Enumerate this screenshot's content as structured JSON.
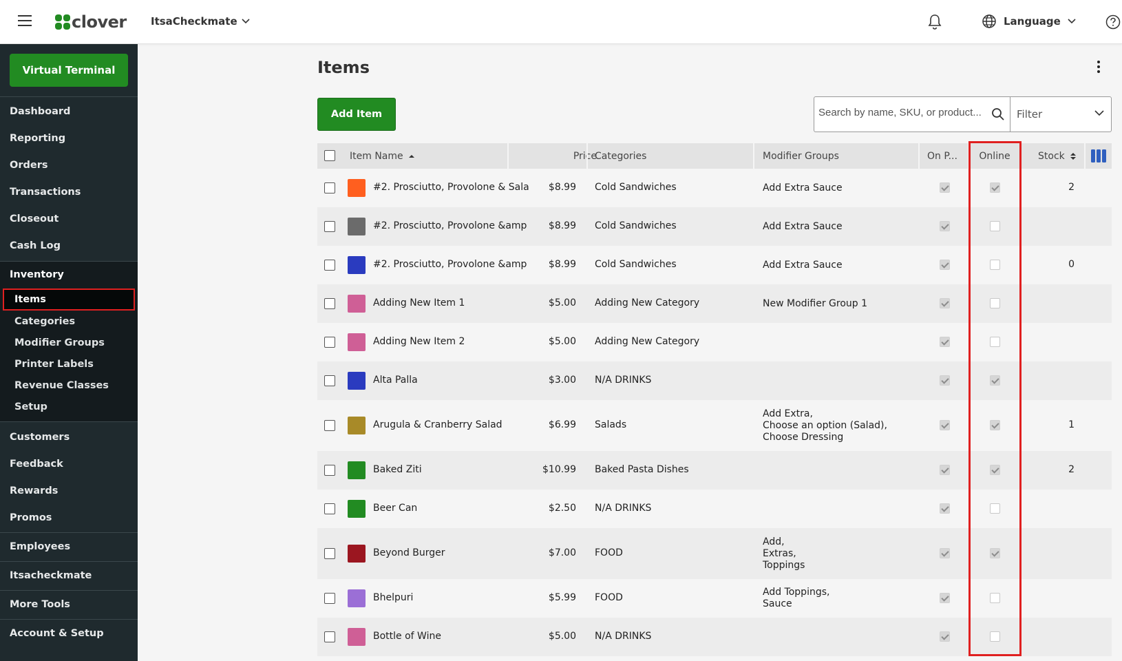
{
  "header": {
    "logo_text": "clover",
    "merchant_name": "ItsaCheckmate",
    "language_label": "Language",
    "icons": [
      "menu-icon",
      "clover-logo",
      "chevron-down-icon",
      "bell-icon",
      "globe-icon",
      "help-icon"
    ]
  },
  "sidebar": {
    "virtual_terminal_label": "Virtual Terminal",
    "items": {
      "dashboard": "Dashboard",
      "reporting": "Reporting",
      "orders": "Orders",
      "transactions": "Transactions",
      "closeout": "Closeout",
      "cash_log": "Cash Log",
      "inventory": "Inventory",
      "items": "Items",
      "categories": "Categories",
      "modifier_groups": "Modifier Groups",
      "printer_labels": "Printer Labels",
      "revenue_classes": "Revenue Classes",
      "setup": "Setup",
      "customers": "Customers",
      "feedback": "Feedback",
      "rewards": "Rewards",
      "promos": "Promos",
      "employees": "Employees",
      "itsacheckmate": "Itsacheckmate",
      "more_tools": "More Tools",
      "account_setup": "Account & Setup"
    }
  },
  "main": {
    "title": "Items",
    "add_item_label": "Add Item",
    "search_placeholder": "Search by name, SKU, or product...",
    "filter_label": "Filter"
  },
  "table": {
    "columns": {
      "item_name": "Item Name",
      "price": "Price",
      "categories": "Categories",
      "modifier_groups": "Modifier Groups",
      "on_pos": "On P...",
      "online": "Online",
      "stock": "Stock"
    },
    "rows": [
      {
        "name": "#2. Prosciutto, Provolone & Sala",
        "color": "#ff5f1f",
        "price": "$8.99",
        "category": "Cold Sandwiches",
        "modifiers": [
          "Add Extra Sauce"
        ],
        "on_pos": true,
        "online": true,
        "stock": "2"
      },
      {
        "name": "#2. Prosciutto, Provolone &amp",
        "color": "#6b6b6b",
        "price": "$8.99",
        "category": "Cold Sandwiches",
        "modifiers": [
          "Add Extra Sauce"
        ],
        "on_pos": true,
        "online": false,
        "stock": ""
      },
      {
        "name": "#2. Prosciutto, Provolone &amp",
        "color": "#2a3bbf",
        "price": "$8.99",
        "category": "Cold Sandwiches",
        "modifiers": [
          "Add Extra Sauce"
        ],
        "on_pos": true,
        "online": false,
        "stock": "0"
      },
      {
        "name": "Adding New Item 1",
        "color": "#cf5f96",
        "price": "$5.00",
        "category": "Adding New Category",
        "modifiers": [
          "New Modifier Group 1"
        ],
        "on_pos": true,
        "online": false,
        "stock": ""
      },
      {
        "name": "Adding New Item 2",
        "color": "#cf5f96",
        "price": "$5.00",
        "category": "Adding New Category",
        "modifiers": [],
        "on_pos": true,
        "online": false,
        "stock": ""
      },
      {
        "name": "Alta Palla",
        "color": "#2a3bbf",
        "price": "$3.00",
        "category": "N/A DRINKS",
        "modifiers": [],
        "on_pos": true,
        "online": true,
        "stock": ""
      },
      {
        "name": "Arugula & Cranberry Salad",
        "color": "#a88a28",
        "price": "$6.99",
        "category": "Salads",
        "modifiers": [
          "Add Extra,",
          "Choose an option (Salad),",
          "Choose Dressing"
        ],
        "on_pos": true,
        "online": true,
        "stock": "1"
      },
      {
        "name": "Baked Ziti",
        "color": "#228b22",
        "price": "$10.99",
        "category": "Baked Pasta Dishes",
        "modifiers": [],
        "on_pos": true,
        "online": true,
        "stock": "2"
      },
      {
        "name": "Beer Can",
        "color": "#228b22",
        "price": "$2.50",
        "category": "N/A DRINKS",
        "modifiers": [],
        "on_pos": true,
        "online": false,
        "stock": ""
      },
      {
        "name": "Beyond Burger",
        "color": "#9b1620",
        "price": "$7.00",
        "category": "FOOD",
        "modifiers": [
          "Add,",
          "Extras,",
          "Toppings"
        ],
        "on_pos": true,
        "online": true,
        "stock": ""
      },
      {
        "name": "Bhelpuri",
        "color": "#9b6fd6",
        "price": "$5.99",
        "category": "FOOD",
        "modifiers": [
          "Add Toppings,",
          "Sauce"
        ],
        "on_pos": true,
        "online": false,
        "stock": ""
      },
      {
        "name": "Bottle of Wine",
        "color": "#cf5f96",
        "price": "$5.00",
        "category": "N/A DRINKS",
        "modifiers": [],
        "on_pos": true,
        "online": false,
        "stock": ""
      }
    ]
  },
  "colors": {
    "brand_green": "#228b22",
    "sidebar_bg": "#1f2a2e",
    "highlight_red": "#e02020"
  }
}
